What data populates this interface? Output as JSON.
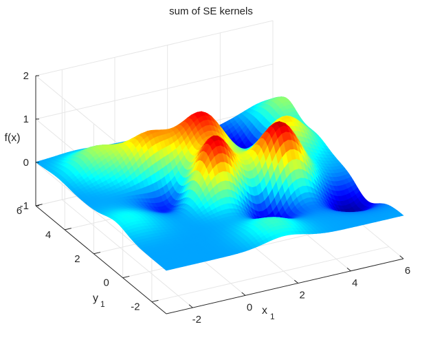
{
  "chart_data": {
    "type": "surface",
    "title": "sum of SE kernels",
    "xlabel": "x",
    "xlabel_sub": "1",
    "ylabel": "y",
    "ylabel_sub": "1",
    "zlabel": "f(x)",
    "xlim": [
      -3,
      6
    ],
    "ylim": [
      -3,
      6
    ],
    "zlim": [
      -1,
      2
    ],
    "x_ticks": [
      "-2",
      "0",
      "2",
      "4",
      "6"
    ],
    "y_ticks": [
      "-2",
      "0",
      "2",
      "4",
      "6"
    ],
    "z_ticks": [
      "-1",
      "0",
      "1",
      "2"
    ],
    "grid": true,
    "colormap": "jet",
    "surface_samples": {
      "note_rows": "f(x1, y1) sampled at x1 = -3..6 step 1.5, y1 = -3..6 step 1.5",
      "x": [
        -3,
        -1.5,
        0,
        1.5,
        3,
        4.5,
        6
      ],
      "y": [
        -3,
        -1.5,
        0,
        1.5,
        3,
        4.5,
        6
      ],
      "f_min": -0.6,
      "f_max": 1.5
    }
  },
  "colors": {
    "axis": "#262626",
    "grid": "#e6e6e6",
    "background": "#ffffff"
  }
}
